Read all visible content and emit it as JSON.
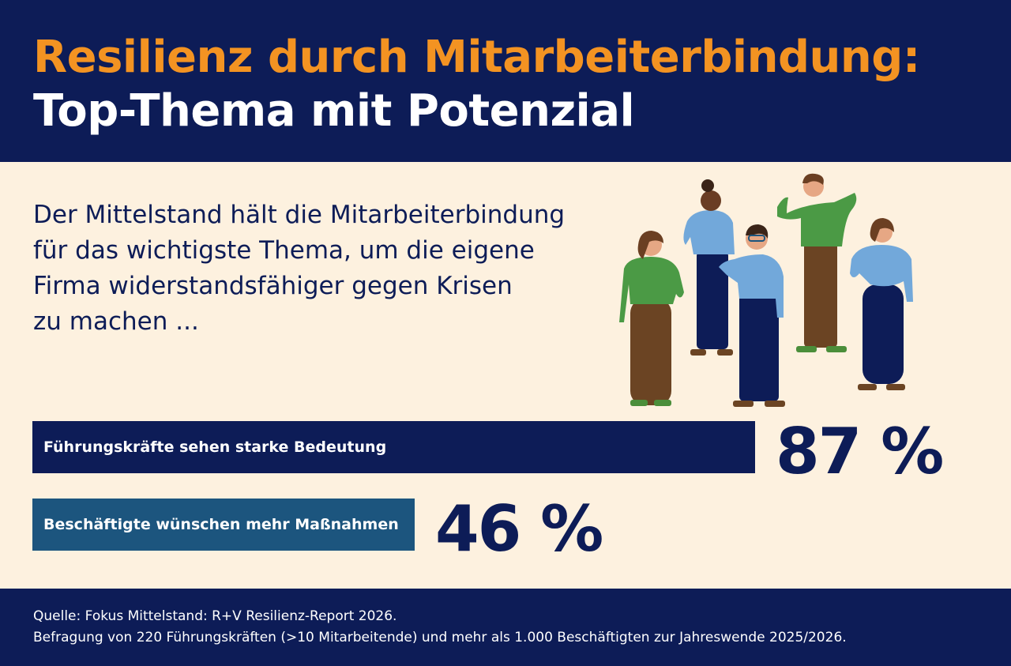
{
  "header": {
    "title_line1": "Resilienz durch Mitarbeiterbindung:",
    "title_line2": "Top-Thema mit Potenzial"
  },
  "intro": {
    "lines": [
      "Der Mittelstand hält die Mitarbeiterbindung",
      "für das wichtigste Thema, um die eigene",
      "Firma widerstandsfähiger gegen Krisen",
      "zu machen ..."
    ]
  },
  "chart_data": {
    "type": "bar",
    "title": "Resilienz durch Mitarbeiterbindung: Top-Thema mit Potenzial",
    "orientation": "horizontal",
    "unit": "%",
    "xlim": [
      0,
      100
    ],
    "categories": [
      "Führungskräfte sehen starke Bedeutung",
      "Beschäftigte wünschen mehr Maßnahmen"
    ],
    "values": [
      87,
      46
    ],
    "value_labels": [
      "87 %",
      "46 %"
    ],
    "colors": [
      "#0d1c57",
      "#1c557e"
    ]
  },
  "footer": {
    "source_line1": "Quelle: Fokus Mittelstand: R+V Resilienz-Report 2026.",
    "source_line2": "Befragung von 220 Führungskräften (>10 Mitarbeitende) und mehr als 1.000 Beschäftigten zur Jahreswende 2025/2026."
  },
  "colors": {
    "navy": "#0d1c57",
    "orange": "#f39322",
    "cream": "#fdf1df",
    "teal": "#1c557e"
  }
}
